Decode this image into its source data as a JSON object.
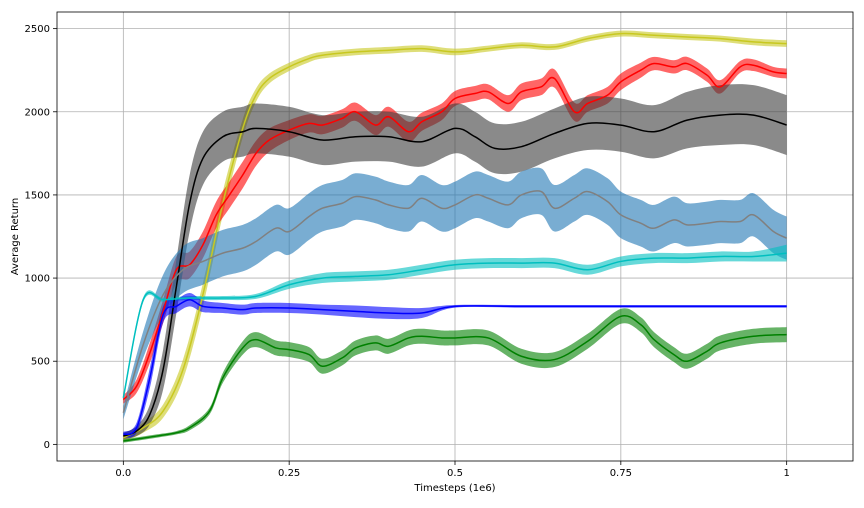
{
  "chart_data": {
    "type": "line",
    "title": "",
    "xlabel": "Timesteps (1e6)",
    "ylabel": "Average Return",
    "xlim": [
      -0.1,
      1.1
    ],
    "ylim": [
      -100,
      2600
    ],
    "xticks": [
      0,
      0.25,
      0.5,
      0.75,
      1
    ],
    "xtick_labels": [
      "0.0",
      "0.25",
      "0.5",
      "0.75",
      "1"
    ],
    "yticks": [
      0,
      500,
      1000,
      1500,
      2000,
      2500
    ],
    "ytick_labels": [
      "0",
      "500",
      "1000",
      "1500",
      "2000",
      "2500"
    ],
    "grid": true,
    "legend": "none",
    "series": [
      {
        "color": "#c8c820",
        "band_color": "#c8c820",
        "x": [
          0,
          0.03,
          0.06,
          0.09,
          0.12,
          0.15,
          0.18,
          0.2,
          0.22,
          0.25,
          0.28,
          0.3,
          0.35,
          0.4,
          0.45,
          0.5,
          0.55,
          0.6,
          0.65,
          0.7,
          0.75,
          0.8,
          0.85,
          0.9,
          0.95,
          1
        ],
        "y": [
          40,
          100,
          200,
          450,
          900,
          1450,
          1900,
          2100,
          2200,
          2270,
          2320,
          2340,
          2360,
          2370,
          2380,
          2360,
          2380,
          2400,
          2390,
          2440,
          2470,
          2460,
          2450,
          2440,
          2420,
          2410
        ],
        "err": [
          25,
          30,
          40,
          60,
          70,
          70,
          55,
          40,
          30,
          25,
          22,
          20,
          20,
          20,
          20,
          20,
          18,
          18,
          18,
          18,
          18,
          18,
          18,
          18,
          20,
          20
        ]
      },
      {
        "color": "#ff0000",
        "band_color": "#ff0000",
        "x": [
          0,
          0.02,
          0.04,
          0.06,
          0.08,
          0.1,
          0.12,
          0.14,
          0.16,
          0.18,
          0.2,
          0.22,
          0.25,
          0.28,
          0.3,
          0.33,
          0.35,
          0.38,
          0.4,
          0.43,
          0.45,
          0.48,
          0.5,
          0.53,
          0.55,
          0.58,
          0.6,
          0.63,
          0.65,
          0.68,
          0.7,
          0.73,
          0.75,
          0.78,
          0.8,
          0.83,
          0.85,
          0.88,
          0.9,
          0.93,
          0.95,
          0.98,
          1
        ],
        "y": [
          270,
          350,
          550,
          800,
          1050,
          1080,
          1200,
          1380,
          1500,
          1620,
          1750,
          1830,
          1890,
          1930,
          1920,
          1960,
          2000,
          1920,
          1970,
          1880,
          1940,
          2000,
          2080,
          2110,
          2120,
          2050,
          2120,
          2150,
          2200,
          2000,
          2050,
          2100,
          2180,
          2250,
          2290,
          2270,
          2290,
          2220,
          2150,
          2270,
          2280,
          2240,
          2230
        ],
        "err": [
          25,
          40,
          60,
          70,
          80,
          80,
          80,
          80,
          80,
          80,
          75,
          70,
          60,
          55,
          55,
          55,
          55,
          60,
          60,
          60,
          55,
          50,
          45,
          45,
          45,
          50,
          50,
          50,
          55,
          55,
          50,
          50,
          50,
          45,
          40,
          40,
          40,
          40,
          40,
          35,
          35,
          30,
          30
        ]
      },
      {
        "color": "#000000",
        "band_color": "#3c3c3c",
        "x": [
          0,
          0.02,
          0.04,
          0.06,
          0.08,
          0.1,
          0.12,
          0.15,
          0.18,
          0.2,
          0.25,
          0.3,
          0.35,
          0.4,
          0.45,
          0.5,
          0.53,
          0.56,
          0.6,
          0.65,
          0.7,
          0.75,
          0.8,
          0.85,
          0.9,
          0.95,
          1
        ],
        "y": [
          50,
          80,
          180,
          450,
          950,
          1450,
          1720,
          1850,
          1880,
          1900,
          1880,
          1830,
          1850,
          1850,
          1820,
          1900,
          1850,
          1780,
          1790,
          1870,
          1930,
          1920,
          1880,
          1950,
          1980,
          1980,
          1920
        ],
        "err": [
          20,
          30,
          60,
          120,
          160,
          170,
          160,
          150,
          150,
          150,
          150,
          150,
          150,
          150,
          150,
          150,
          150,
          150,
          150,
          150,
          160,
          160,
          160,
          170,
          180,
          180,
          180
        ]
      },
      {
        "color": "#808080",
        "band_color": "#1f77b4",
        "x": [
          0,
          0.03,
          0.06,
          0.09,
          0.12,
          0.15,
          0.18,
          0.2,
          0.23,
          0.25,
          0.28,
          0.3,
          0.33,
          0.35,
          0.38,
          0.4,
          0.43,
          0.45,
          0.48,
          0.5,
          0.53,
          0.55,
          0.58,
          0.6,
          0.63,
          0.65,
          0.68,
          0.7,
          0.73,
          0.75,
          0.78,
          0.8,
          0.83,
          0.85,
          0.88,
          0.9,
          0.93,
          0.95,
          0.98,
          1
        ],
        "y": [
          190,
          600,
          900,
          1050,
          1100,
          1150,
          1180,
          1220,
          1300,
          1280,
          1370,
          1420,
          1450,
          1490,
          1470,
          1440,
          1420,
          1480,
          1420,
          1440,
          1500,
          1480,
          1440,
          1500,
          1520,
          1420,
          1480,
          1520,
          1460,
          1380,
          1330,
          1300,
          1350,
          1320,
          1330,
          1340,
          1340,
          1380,
          1280,
          1240
        ],
        "err": [
          40,
          80,
          120,
          140,
          140,
          140,
          140,
          140,
          140,
          140,
          140,
          140,
          140,
          140,
          140,
          140,
          140,
          140,
          140,
          140,
          140,
          140,
          140,
          140,
          140,
          140,
          140,
          140,
          140,
          140,
          140,
          140,
          140,
          130,
          130,
          130,
          130,
          130,
          130,
          130
        ]
      },
      {
        "color": "#00bfbf",
        "band_color": "#00bfbf",
        "x": [
          0,
          0.03,
          0.06,
          0.1,
          0.15,
          0.2,
          0.25,
          0.3,
          0.35,
          0.4,
          0.45,
          0.5,
          0.55,
          0.6,
          0.65,
          0.7,
          0.75,
          0.8,
          0.85,
          0.9,
          0.95,
          1
        ],
        "y": [
          280,
          870,
          870,
          880,
          880,
          890,
          960,
          1000,
          1010,
          1020,
          1050,
          1080,
          1090,
          1090,
          1090,
          1050,
          1100,
          1120,
          1120,
          1130,
          1130,
          1150
        ],
        "err": [
          20,
          15,
          12,
          12,
          12,
          15,
          25,
          30,
          30,
          30,
          30,
          30,
          30,
          30,
          30,
          30,
          30,
          30,
          30,
          30,
          30,
          50
        ]
      },
      {
        "color": "#0000ff",
        "band_color": "#0000ff",
        "x": [
          0,
          0.02,
          0.04,
          0.06,
          0.08,
          0.1,
          0.12,
          0.15,
          0.18,
          0.2,
          0.25,
          0.3,
          0.35,
          0.4,
          0.45,
          0.5,
          0.6,
          0.7,
          0.8,
          0.9,
          1
        ],
        "y": [
          60,
          100,
          400,
          780,
          830,
          870,
          830,
          820,
          810,
          820,
          820,
          810,
          800,
          790,
          790,
          830,
          830,
          830,
          830,
          830,
          830
        ],
        "err": [
          15,
          30,
          60,
          50,
          40,
          40,
          35,
          30,
          30,
          30,
          30,
          30,
          35,
          35,
          30,
          8,
          8,
          8,
          8,
          8,
          8
        ]
      },
      {
        "color": "#008000",
        "band_color": "#008000",
        "x": [
          0,
          0.05,
          0.08,
          0.1,
          0.13,
          0.15,
          0.18,
          0.2,
          0.23,
          0.25,
          0.28,
          0.3,
          0.33,
          0.35,
          0.38,
          0.4,
          0.43,
          0.45,
          0.48,
          0.5,
          0.55,
          0.6,
          0.65,
          0.7,
          0.75,
          0.78,
          0.8,
          0.83,
          0.85,
          0.88,
          0.9,
          0.95,
          1
        ],
        "y": [
          20,
          50,
          70,
          100,
          200,
          400,
          580,
          630,
          580,
          570,
          540,
          470,
          520,
          580,
          610,
          590,
          640,
          650,
          640,
          640,
          640,
          530,
          510,
          620,
          770,
          720,
          630,
          540,
          500,
          560,
          610,
          650,
          660
        ],
        "err": [
          10,
          10,
          10,
          15,
          20,
          30,
          40,
          45,
          45,
          45,
          45,
          45,
          45,
          45,
          45,
          45,
          45,
          45,
          45,
          45,
          45,
          45,
          45,
          45,
          45,
          45,
          45,
          45,
          45,
          45,
          45,
          45,
          45
        ]
      }
    ]
  }
}
